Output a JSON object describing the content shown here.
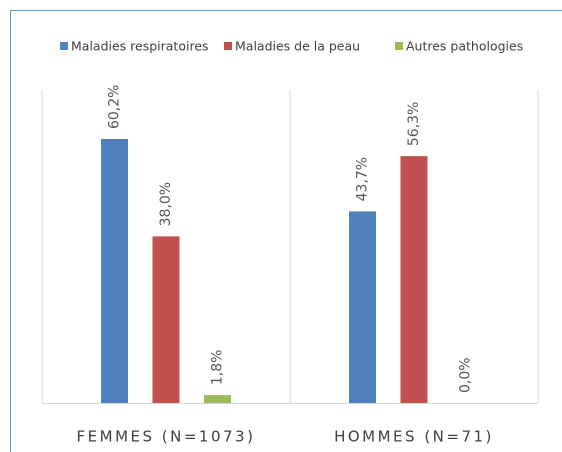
{
  "chart_data": {
    "type": "bar",
    "categories": [
      "FEMMES (N=1073)",
      "HOMMES (N=71)"
    ],
    "series": [
      {
        "name": "Maladies respiratoires",
        "color": "#4f81bd",
        "values": [
          60.2,
          43.7
        ],
        "value_labels": [
          "60,2%",
          "43,7%"
        ]
      },
      {
        "name": "Maladies de la peau",
        "color": "#c0504d",
        "values": [
          38.0,
          56.3
        ],
        "value_labels": [
          "38,0%",
          "56,3%"
        ]
      },
      {
        "name": "Autres pathologies",
        "color": "#9bbb59",
        "values": [
          1.8,
          0.0
        ],
        "value_labels": [
          "1,8%",
          "0,0%"
        ]
      }
    ],
    "legend": "top"
  }
}
